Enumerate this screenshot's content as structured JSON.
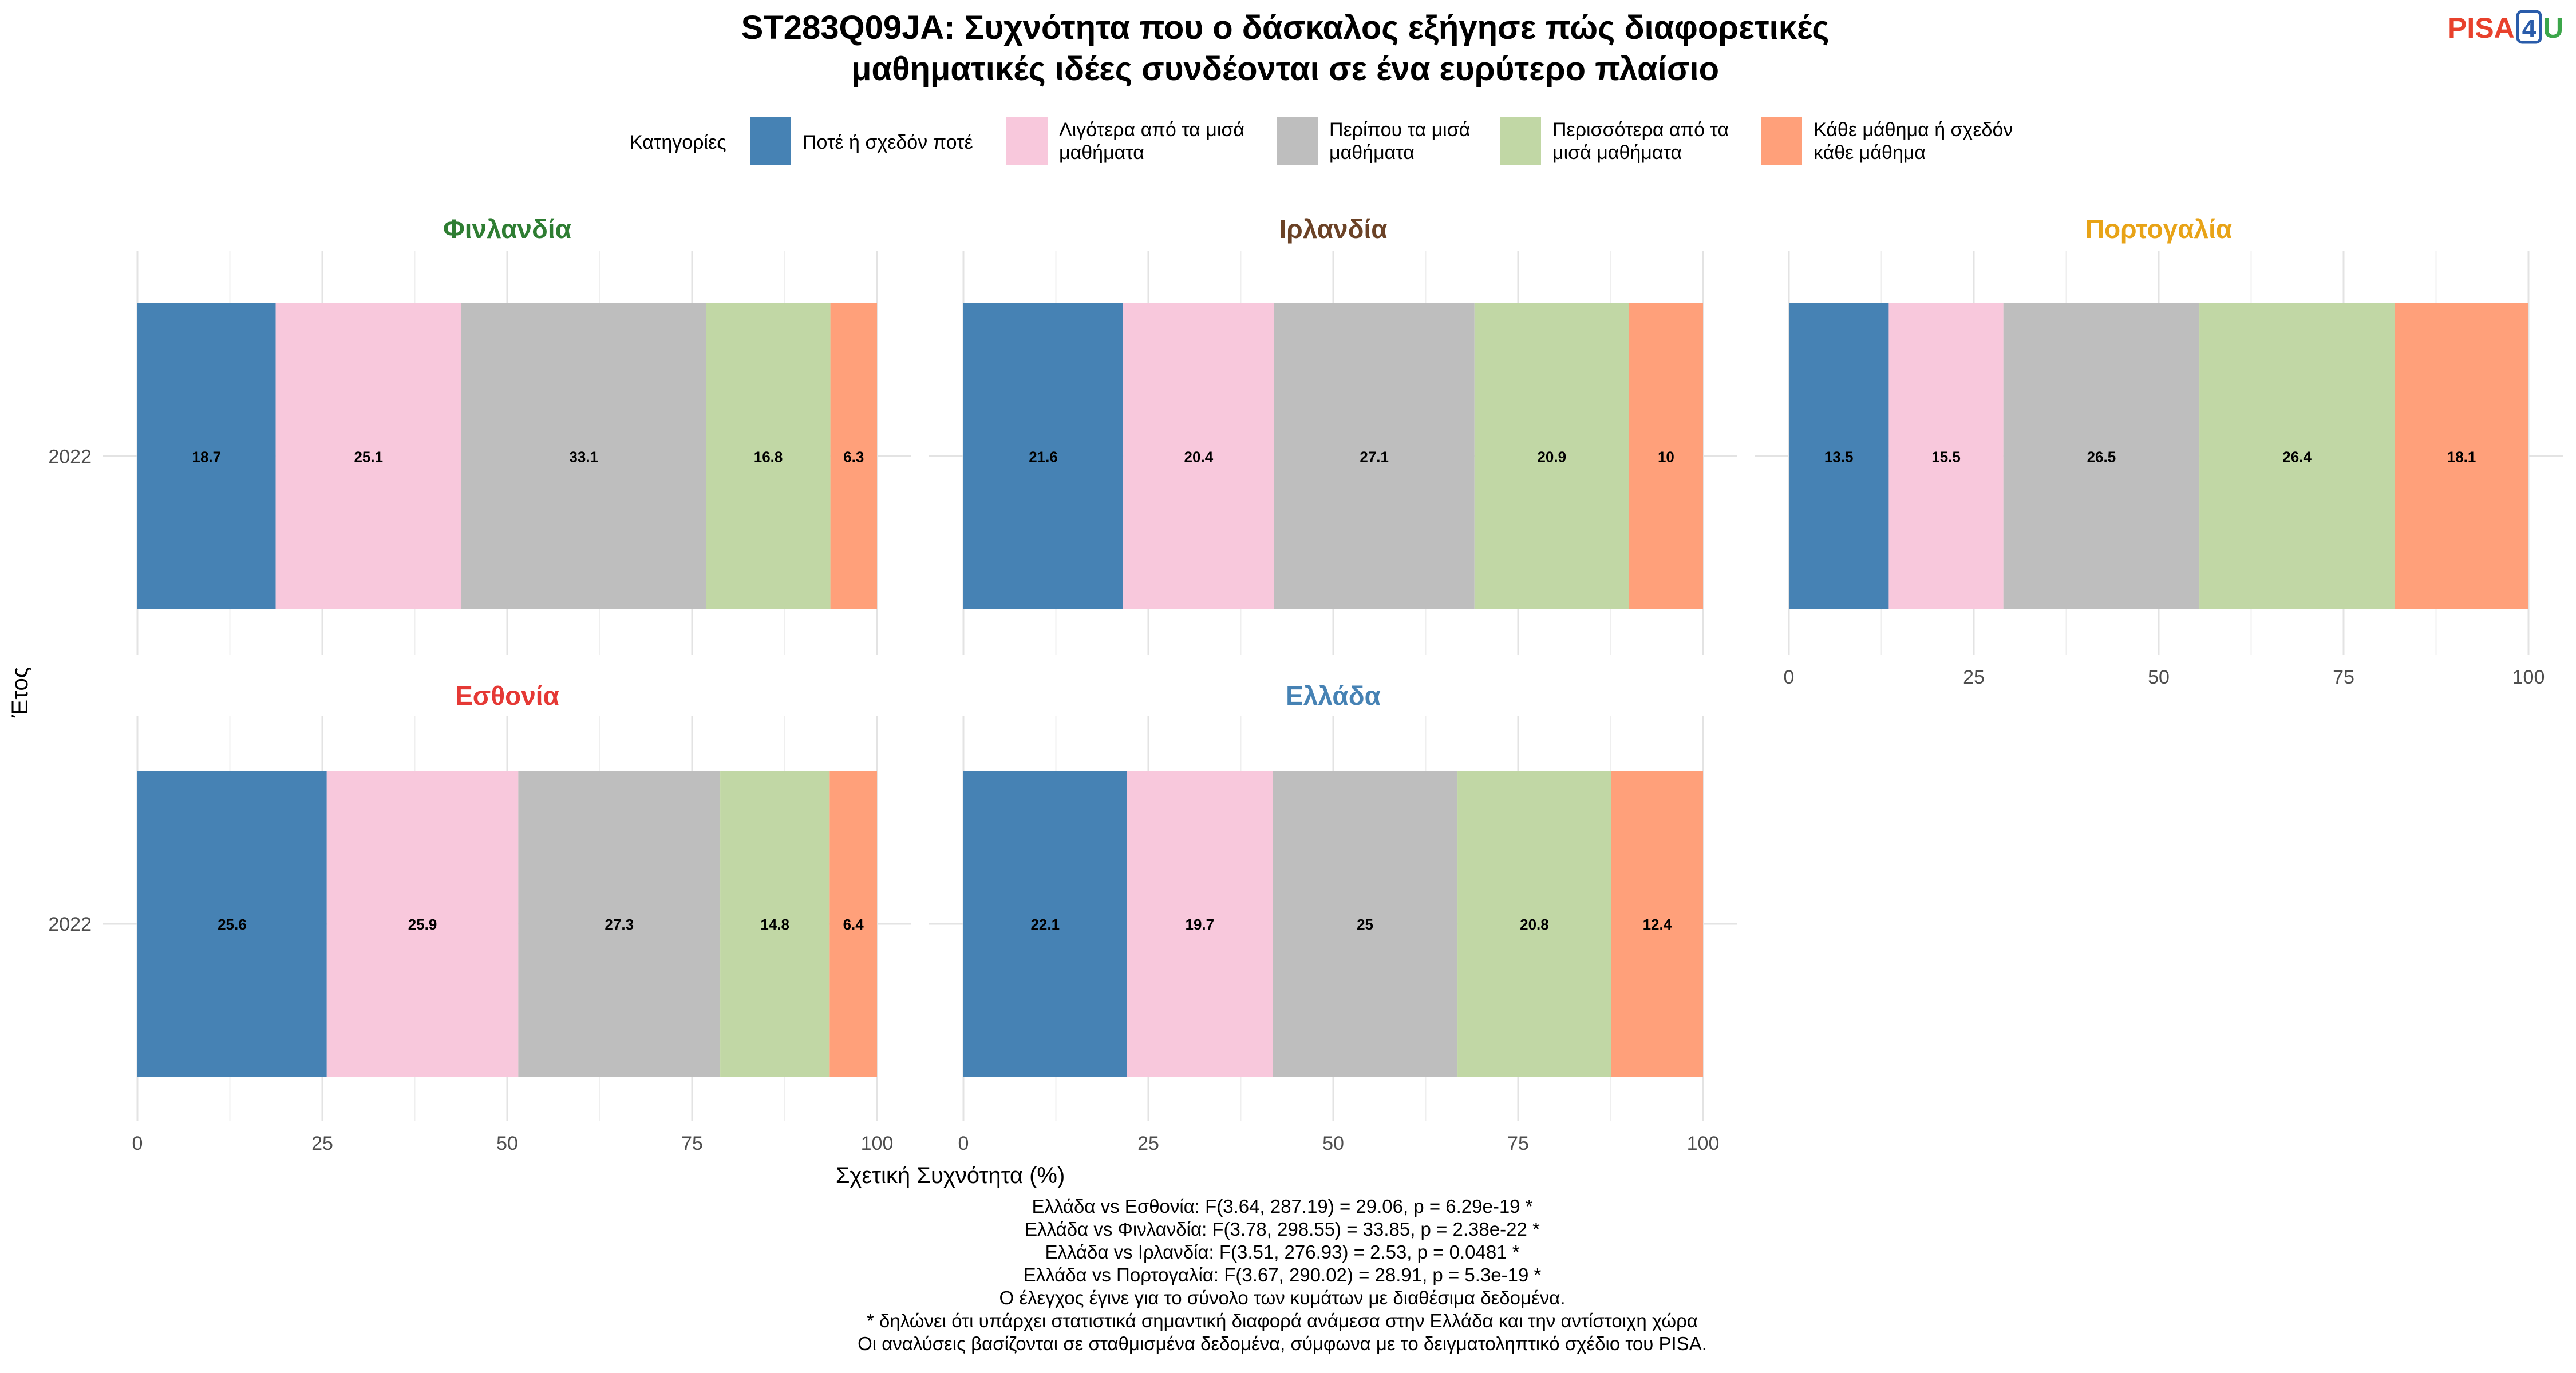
{
  "colors": {
    "cat1": "#4682B4",
    "cat2": "#F8C8DC",
    "cat3": "#BEBEBE",
    "cat4": "#C1D7A5",
    "cat5": "#FFA07A",
    "grid": "#E6E6E6",
    "axis_text": "#4D4D4D",
    "logo_pisa": "#E8412C",
    "logo_4": "#2A5CAA",
    "logo_u": "#3BA64A"
  },
  "logo": {
    "part1": "PISA",
    "part2": "4",
    "part3": "U"
  },
  "chart_data": {
    "type": "bar",
    "orientation": "horizontal-stacked",
    "title_line1": "ST283Q09JA: Συχνότητα που ο δάσκαλος εξήγησε πώς διαφορετικές",
    "title_line2": "μαθηματικές ιδέες συνδέονται σε ένα ευρύτερο πλαίσιο",
    "legend_title": "Κατηγορίες",
    "legend_position": "top",
    "categories": [
      {
        "label": [
          "Ποτέ ή σχεδόν ποτέ"
        ],
        "color_key": "cat1"
      },
      {
        "label": [
          "Λιγότερα από τα μισά",
          "μαθήματα"
        ],
        "color_key": "cat2"
      },
      {
        "label": [
          "Περίπου τα μισά",
          "μαθήματα"
        ],
        "color_key": "cat3"
      },
      {
        "label": [
          "Περισσότερα από τα",
          "μισά μαθήματα"
        ],
        "color_key": "cat4"
      },
      {
        "label": [
          "Κάθε μάθημα ή σχεδόν",
          "κάθε μάθημα"
        ],
        "color_key": "cat5"
      }
    ],
    "xlabel": "Σχετική Συχνότητα (%)",
    "ylabel": "Έτος",
    "xlim": [
      0,
      100
    ],
    "xticks": [
      0,
      25,
      50,
      75,
      100
    ],
    "grid": true,
    "panels": [
      {
        "country": "Φινλανδία",
        "title_color": "#2E7D32",
        "year": "2022",
        "values": [
          18.7,
          25.1,
          33.1,
          16.8,
          6.3
        ],
        "labels": [
          "18.7",
          "25.1",
          "33.1",
          "16.8",
          "6.3"
        ]
      },
      {
        "country": "Ιρλανδία",
        "title_color": "#6B4226",
        "year": "2022",
        "values": [
          21.6,
          20.4,
          27.1,
          20.9,
          10
        ],
        "labels": [
          "21.6",
          "20.4",
          "27.1",
          "20.9",
          "10"
        ]
      },
      {
        "country": "Πορτογαλία",
        "title_color": "#E8A317",
        "year": "2022",
        "values": [
          13.5,
          15.5,
          26.5,
          26.4,
          18.1
        ],
        "labels": [
          "13.5",
          "15.5",
          "26.5",
          "26.4",
          "18.1"
        ]
      },
      {
        "country": "Εσθονία",
        "title_color": "#E53935",
        "year": "2022",
        "values": [
          25.6,
          25.9,
          27.3,
          14.8,
          6.4
        ],
        "labels": [
          "25.6",
          "25.9",
          "27.3",
          "14.8",
          "6.4"
        ]
      },
      {
        "country": "Ελλάδα",
        "title_color": "#4682B4",
        "year": "2022",
        "values": [
          22.1,
          19.7,
          25,
          20.8,
          12.4
        ],
        "labels": [
          "22.1",
          "19.7",
          "25",
          "20.8",
          "12.4"
        ]
      }
    ],
    "footnotes": [
      "Ελλάδα vs Εσθονία: F(3.64, 287.19) = 29.06, p = 6.29e-19 *",
      "Ελλάδα vs Φινλανδία: F(3.78, 298.55) = 33.85, p = 2.38e-22 *",
      "Ελλάδα vs Ιρλανδία: F(3.51, 276.93) = 2.53, p = 0.0481 *",
      "Ελλάδα vs Πορτογαλία: F(3.67, 290.02) = 28.91, p = 5.3e-19 *",
      "Ο έλεγχος έγινε για το σύνολο των κυμάτων με διαθέσιμα δεδομένα.",
      "* δηλώνει ότι υπάρχει στατιστικά σημαντική διαφορά ανάμεσα στην Ελλάδα και την αντίστοιχη χώρα",
      "Οι αναλύσεις βασίζονται σε σταθμισμένα δεδομένα, σύμφωνα με το δειγματοληπτικό σχέδιο του PISA."
    ]
  }
}
